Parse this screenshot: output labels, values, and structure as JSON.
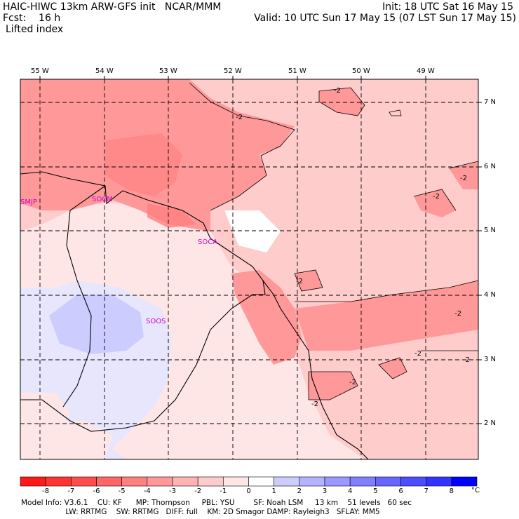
{
  "header": {
    "line1_left": "HAIC-HIWC 13km ARW-GFS init   NCAR/MMM",
    "line2_left": "Fcst:    16 h",
    "line3_left": "Lifted index",
    "line1_right": "Init: 18 UTC Sat 16 May 15",
    "line2_right": "Valid: 10 UTC Sun 17 May 15 (07 LST Sun 17 May 15)"
  },
  "longitude_labels": [
    "55 W",
    "54 W",
    "53 W",
    "52 W",
    "51 W",
    "50 W",
    "49 W"
  ],
  "latitude_labels": [
    "7 N",
    "6 N",
    "5 N",
    "4 N",
    "3 N",
    "2 N"
  ],
  "stations": [
    "SMJP",
    "SOCM",
    "SOCA",
    "SOOS"
  ],
  "contour_labels": [
    "-2",
    "-2",
    "-2",
    "-2",
    "-2",
    "-2",
    "-2",
    "-2",
    "-2",
    "-2"
  ],
  "colorbar": {
    "ticks": [
      "-8",
      "-7",
      "-6",
      "-5",
      "-4",
      "-3",
      "-2",
      "-1",
      "0",
      "1",
      "2",
      "3",
      "4",
      "5",
      "6",
      "7",
      "8"
    ],
    "unit": "°C",
    "colors": [
      "#ff1a1a",
      "#ff3333",
      "#ff4d4d",
      "#ff6666",
      "#ff8080",
      "#ff9999",
      "#ffb3b3",
      "#ffcccc",
      "#ffe6e6",
      "#ffffff",
      "#ccccff",
      "#b3b3ff",
      "#9999ff",
      "#8080ff",
      "#6666ff",
      "#4d4dff",
      "#3333ff",
      "#0000ff"
    ]
  },
  "footer": {
    "line1": "Model Info: V3.6.1    CU: KF      MP: Thompson     PBL: YSU        SF: Noah LSM     13 km    51 levels   60 sec",
    "line2": "                   LW: RRTMG    SW: RRTMG   DIFF: full    KM: 2D Smagor DAMP: Rayleigh3   SFLAY: MM5"
  }
}
